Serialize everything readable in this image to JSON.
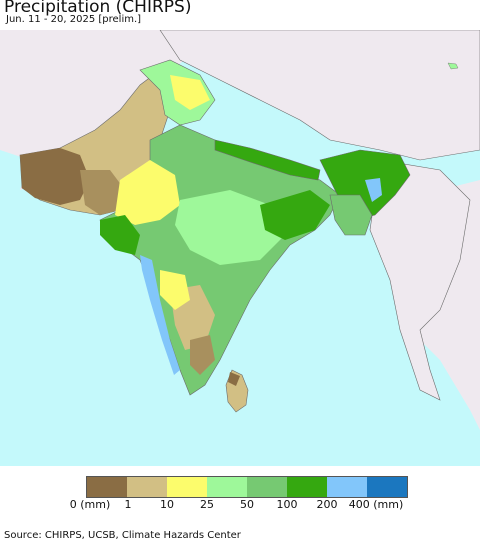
{
  "header": {
    "title": "Precipitation (CHIRPS)",
    "subtitle": "Jun. 11 - 20, 2025 [prelim.]"
  },
  "legend": {
    "colors": [
      "#8a6d44",
      "#d2bf84",
      "#fcfc6c",
      "#9ef89a",
      "#76c972",
      "#35a810",
      "#82c6fa",
      "#1b77bf"
    ],
    "labels": [
      "0 (mm)",
      "1",
      "10",
      "25",
      "50",
      "100",
      "200",
      "400 (mm)"
    ]
  },
  "map_colors": {
    "ocean": "#c4f9fb",
    "land_outside": "#efe9ef",
    "border": "#6b6b6b"
  },
  "footer": {
    "source": "Source: CHIRPS, UCSB, Climate Hazards Center"
  }
}
